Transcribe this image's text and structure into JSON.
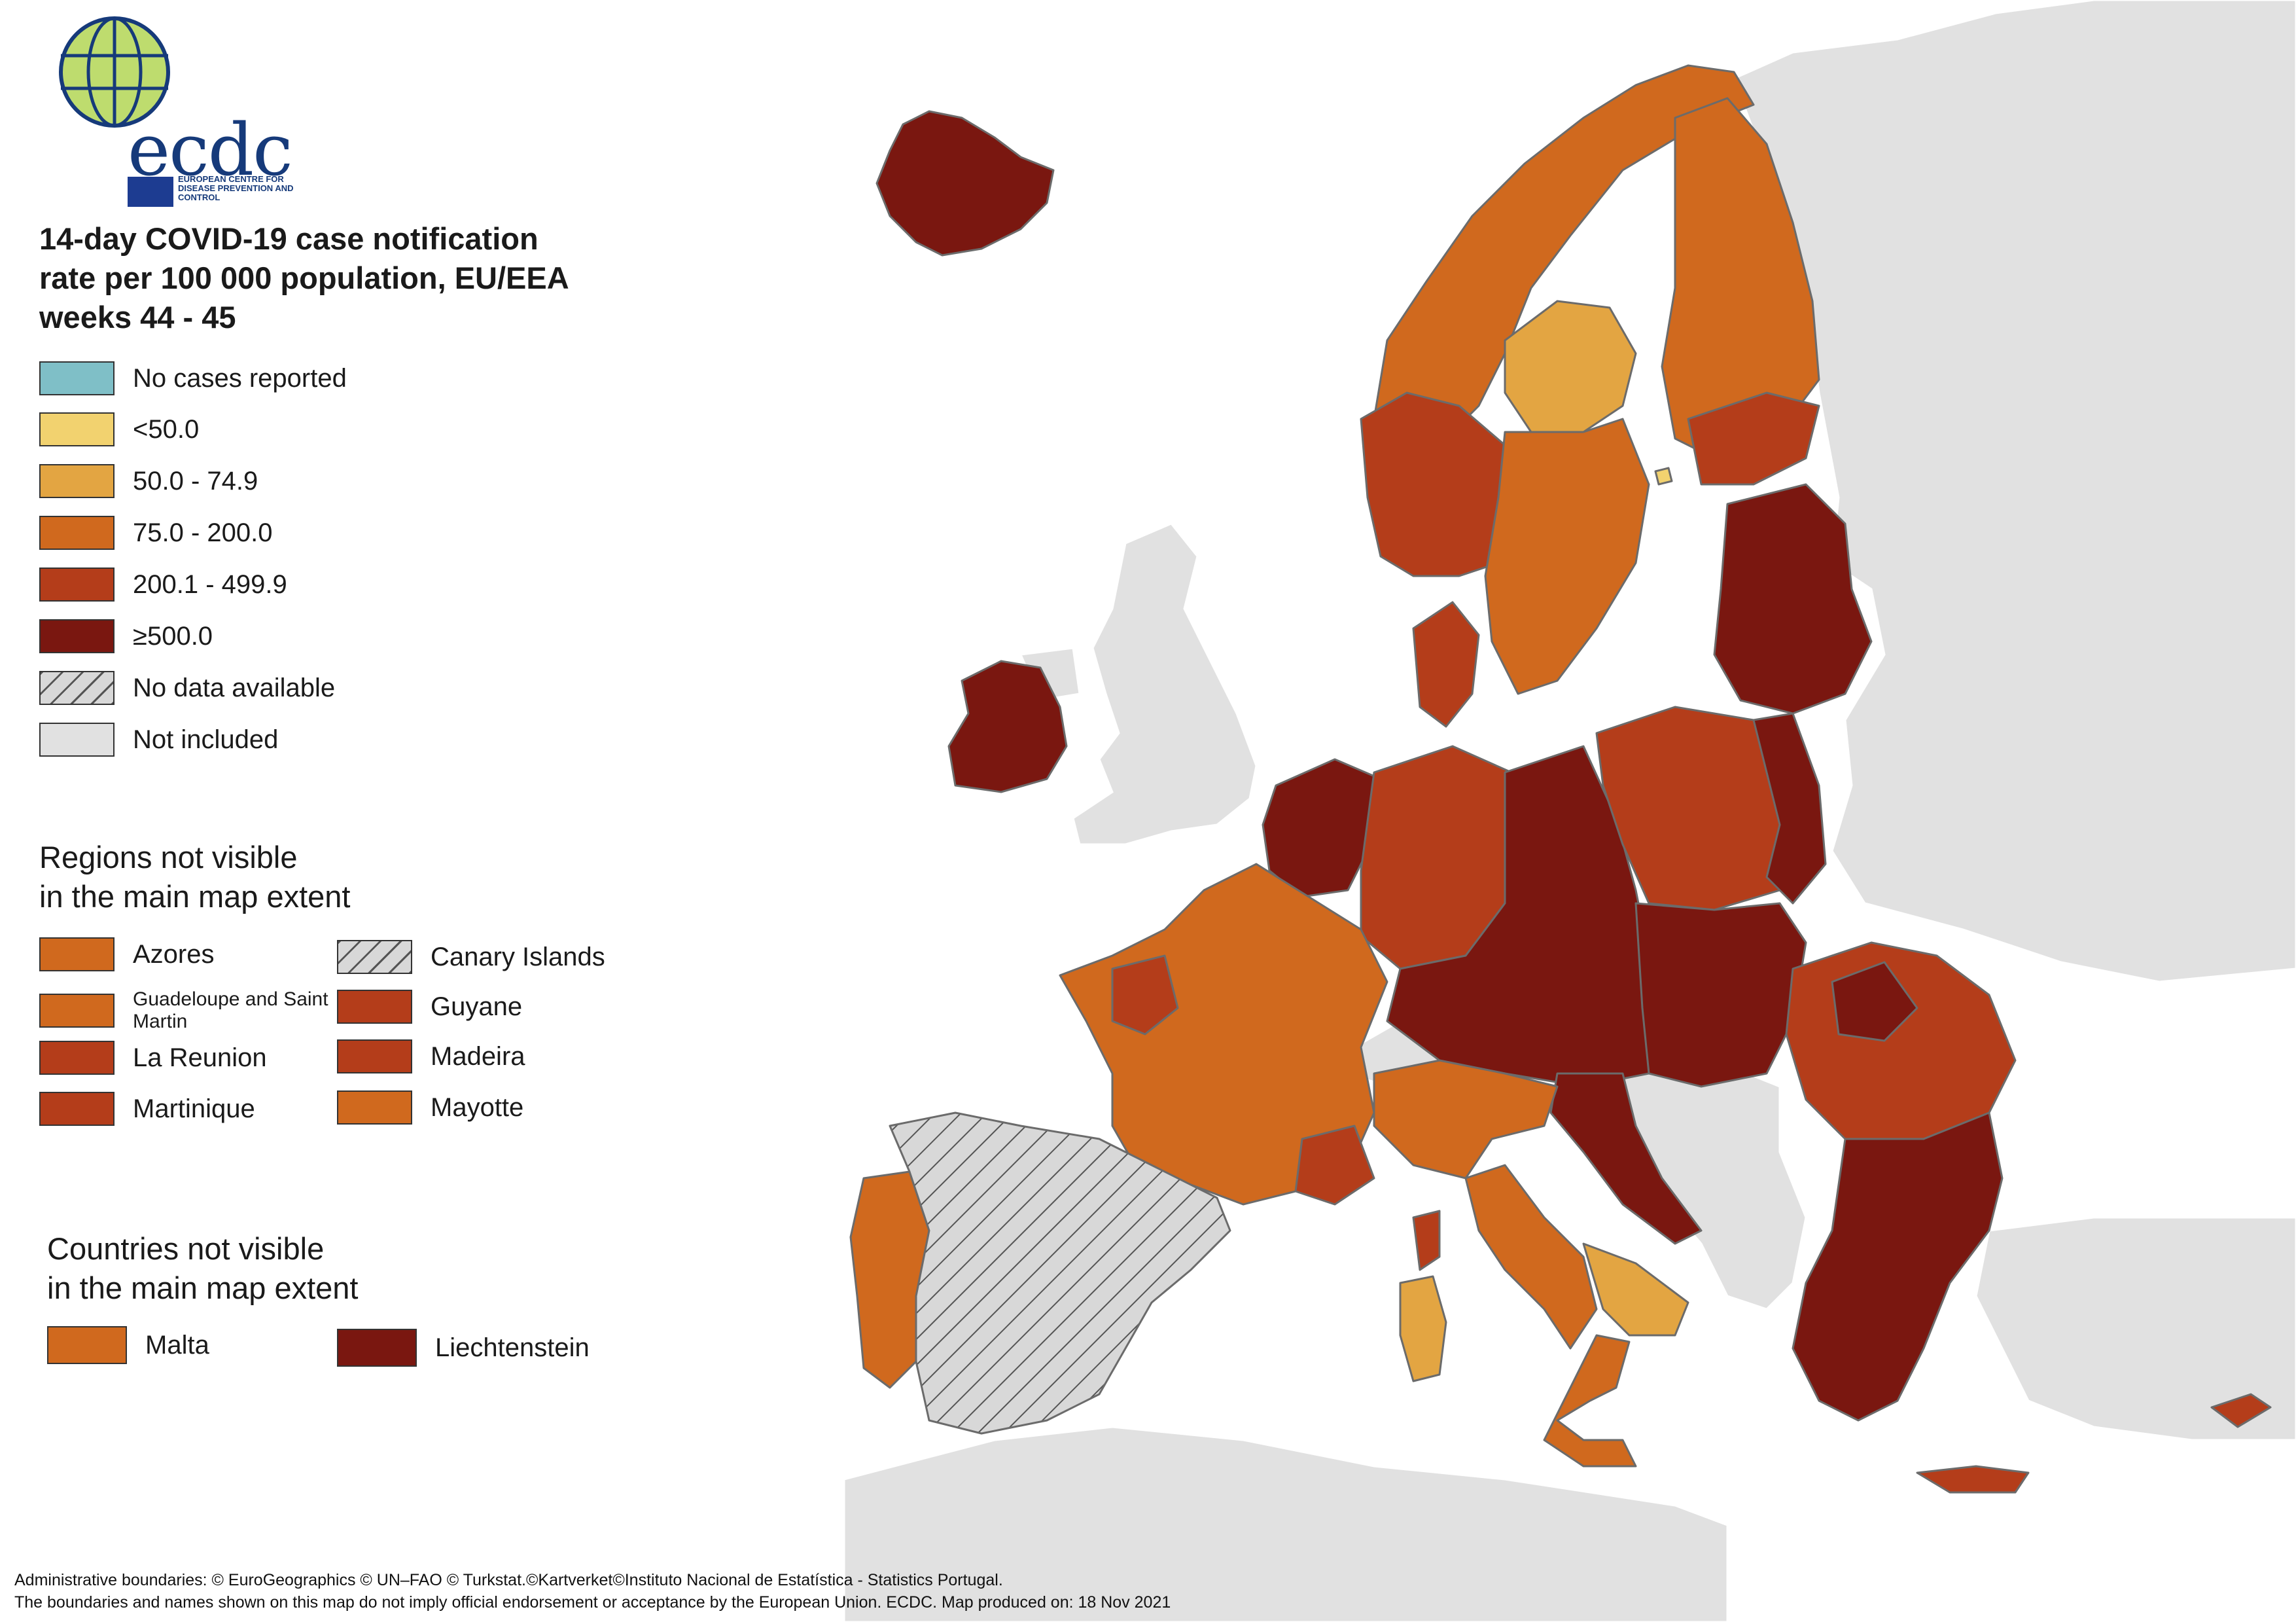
{
  "colors": {
    "no_cases": "#7fbfc7",
    "lt50": "#f2d26f",
    "c50_75": "#e3a542",
    "c75_200": "#d0691e",
    "c200_500": "#b43d1a",
    "ge500": "#7a1710",
    "no_data": "#d8d8d8",
    "not_included": "#e1e1e1",
    "border": "#6b6b6b"
  },
  "logo": {
    "wordmark": "ecdc",
    "subtitle": "EUROPEAN CENTRE FOR DISEASE PREVENTION AND CONTROL"
  },
  "title_lines": [
    "14-day COVID-19 case notification",
    "rate per 100 000 population, EU/EEA",
    "weeks 44 - 45"
  ],
  "legend": [
    {
      "label": "No cases reported",
      "color": "#7fbfc7",
      "hatched": false
    },
    {
      "label": "<50.0",
      "color": "#f2d26f",
      "hatched": false
    },
    {
      "label": "50.0 - 74.9",
      "color": "#e3a542",
      "hatched": false
    },
    {
      "label": "75.0 - 200.0",
      "color": "#d0691e",
      "hatched": false
    },
    {
      "label": "200.1 - 499.9",
      "color": "#b43d1a",
      "hatched": false
    },
    {
      "label": "≥500.0",
      "color": "#7a1710",
      "hatched": false
    },
    {
      "label": "No data available",
      "color": "#d8d8d8",
      "hatched": true
    },
    {
      "label": "Not included",
      "color": "#e1e1e1",
      "hatched": false
    }
  ],
  "regions_heading_lines": [
    "Regions not visible",
    "in the main map extent"
  ],
  "regions": [
    {
      "label": "Azores",
      "color": "#d0691e",
      "hatched": false
    },
    {
      "label": "Canary Islands",
      "color": "#d8d8d8",
      "hatched": true
    },
    {
      "label": "Guadeloupe and Saint Martin",
      "color": "#d0691e",
      "hatched": false
    },
    {
      "label": "Guyane",
      "color": "#b43d1a",
      "hatched": false
    },
    {
      "label": "La Reunion",
      "color": "#b43d1a",
      "hatched": false
    },
    {
      "label": "Madeira",
      "color": "#b43d1a",
      "hatched": false
    },
    {
      "label": "Martinique",
      "color": "#b43d1a",
      "hatched": false
    },
    {
      "label": "Mayotte",
      "color": "#d0691e",
      "hatched": false
    }
  ],
  "countries_heading_lines": [
    "Countries not visible",
    "in the main map extent"
  ],
  "countries": [
    {
      "label": "Malta",
      "color": "#d0691e",
      "hatched": false
    },
    {
      "label": "Liechtenstein",
      "color": "#7a1710",
      "hatched": false
    }
  ],
  "footer_lines": [
    "Administrative boundaries: © EuroGeographics © UN–FAO © Turkstat.©Kartverket©Instituto Nacional de Estatística - Statistics Portugal.",
    "The boundaries and names shown on this map do not imply official endorsement or acceptance by the European Union. ECDC. Map produced on: 18 Nov 2021"
  ]
}
